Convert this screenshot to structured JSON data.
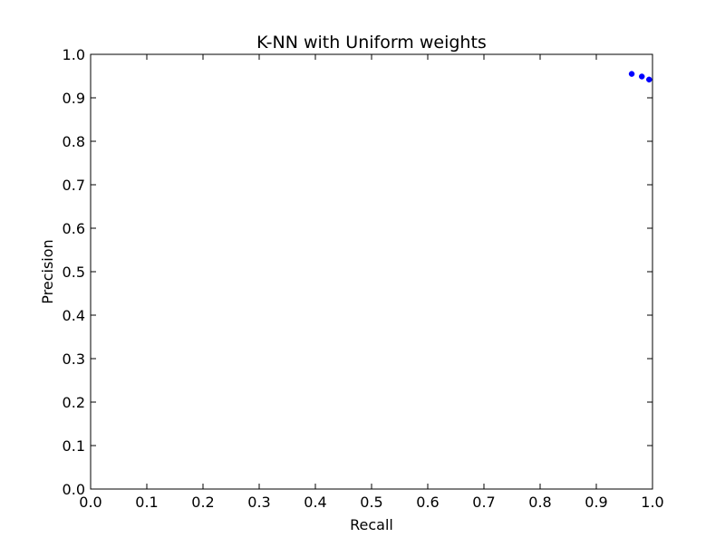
{
  "chart_data": {
    "type": "scatter",
    "title": "K-NN with Uniform weights",
    "xlabel": "Recall",
    "ylabel": "Precision",
    "xlim": [
      0.0,
      1.0
    ],
    "ylim": [
      0.0,
      1.0
    ],
    "xticks": [
      "0.0",
      "0.1",
      "0.2",
      "0.3",
      "0.4",
      "0.5",
      "0.6",
      "0.7",
      "0.8",
      "0.9",
      "1.0"
    ],
    "yticks": [
      "0.0",
      "0.1",
      "0.2",
      "0.3",
      "0.4",
      "0.5",
      "0.6",
      "0.7",
      "0.8",
      "0.9",
      "1.0"
    ],
    "grid": false,
    "legend": "none",
    "series": [
      {
        "color": "#0000ff",
        "points": [
          {
            "x": 0.963,
            "y": 0.955
          },
          {
            "x": 0.981,
            "y": 0.949
          },
          {
            "x": 0.994,
            "y": 0.942
          }
        ]
      }
    ]
  }
}
